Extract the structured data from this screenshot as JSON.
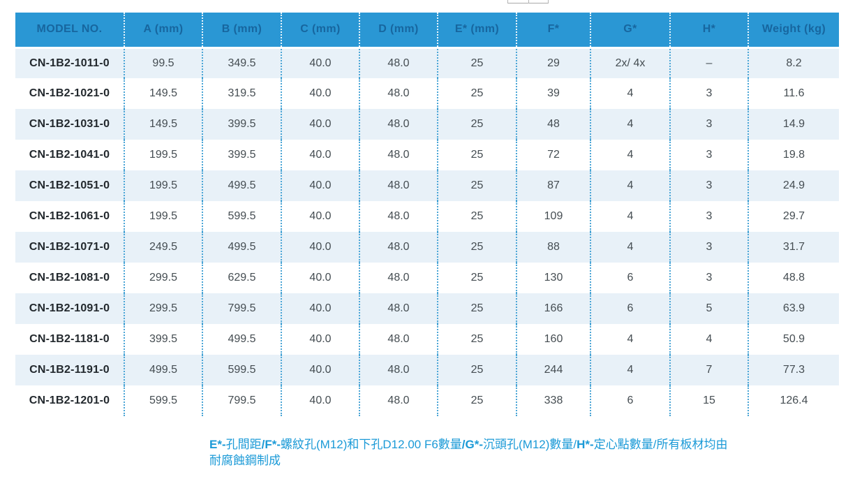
{
  "table": {
    "columns": [
      "MODEL NO.",
      "A (mm)",
      "B (mm)",
      "C (mm)",
      "D (mm)",
      "E* (mm)",
      "F*",
      "G*",
      "H*",
      "Weight (kg)"
    ],
    "rows": [
      [
        "CN-1B2-1011-0",
        "99.5",
        "349.5",
        "40.0",
        "48.0",
        "25",
        "29",
        "2x/ 4x",
        "–",
        "8.2"
      ],
      [
        "CN-1B2-1021-0",
        "149.5",
        "319.5",
        "40.0",
        "48.0",
        "25",
        "39",
        "4",
        "3",
        "11.6"
      ],
      [
        "CN-1B2-1031-0",
        "149.5",
        "399.5",
        "40.0",
        "48.0",
        "25",
        "48",
        "4",
        "3",
        "14.9"
      ],
      [
        "CN-1B2-1041-0",
        "199.5",
        "399.5",
        "40.0",
        "48.0",
        "25",
        "72",
        "4",
        "3",
        "19.8"
      ],
      [
        "CN-1B2-1051-0",
        "199.5",
        "499.5",
        "40.0",
        "48.0",
        "25",
        "87",
        "4",
        "3",
        "24.9"
      ],
      [
        "CN-1B2-1061-0",
        "199.5",
        "599.5",
        "40.0",
        "48.0",
        "25",
        "109",
        "4",
        "3",
        "29.7"
      ],
      [
        "CN-1B2-1071-0",
        "249.5",
        "499.5",
        "40.0",
        "48.0",
        "25",
        "88",
        "4",
        "3",
        "31.7"
      ],
      [
        "CN-1B2-1081-0",
        "299.5",
        "629.5",
        "40.0",
        "48.0",
        "25",
        "130",
        "6",
        "3",
        "48.8"
      ],
      [
        "CN-1B2-1091-0",
        "299.5",
        "799.5",
        "40.0",
        "48.0",
        "25",
        "166",
        "6",
        "5",
        "63.9"
      ],
      [
        "CN-1B2-1181-0",
        "399.5",
        "499.5",
        "40.0",
        "48.0",
        "25",
        "160",
        "4",
        "4",
        "50.9"
      ],
      [
        "CN-1B2-1191-0",
        "499.5",
        "599.5",
        "40.0",
        "48.0",
        "25",
        "244",
        "4",
        "7",
        "77.3"
      ],
      [
        "CN-1B2-1201-0",
        "599.5",
        "799.5",
        "40.0",
        "48.0",
        "25",
        "338",
        "6",
        "15",
        "126.4"
      ]
    ]
  },
  "footnote": {
    "segments": [
      {
        "text": "E*-",
        "bold": true,
        "break": false
      },
      {
        "text": "孔間距",
        "bold": false,
        "break": false
      },
      {
        "text": "/F*-",
        "bold": true,
        "break": false
      },
      {
        "text": "螺紋孔(M12)和下孔D12.00 F6數量",
        "bold": false,
        "break": false
      },
      {
        "text": "/G*-",
        "bold": true,
        "break": false
      },
      {
        "text": "沉頭孔(M12)數量/",
        "bold": false,
        "break": false
      },
      {
        "text": "H*-",
        "bold": true,
        "break": false
      },
      {
        "text": "定心點數量/所有板材均由",
        "bold": false,
        "break": false
      },
      {
        "text": "耐腐蝕鋼制成",
        "bold": false,
        "break": true
      }
    ]
  },
  "colors": {
    "header_background": "#2a97d4",
    "header_text": "#17669f",
    "row_alt_background": "#e8f1f8",
    "row_background": "#ffffff",
    "body_text": "#454d52",
    "model_text": "#22282d",
    "dotted_separator": "#4aa5d6",
    "footnote_text": "#1b9ad7"
  }
}
